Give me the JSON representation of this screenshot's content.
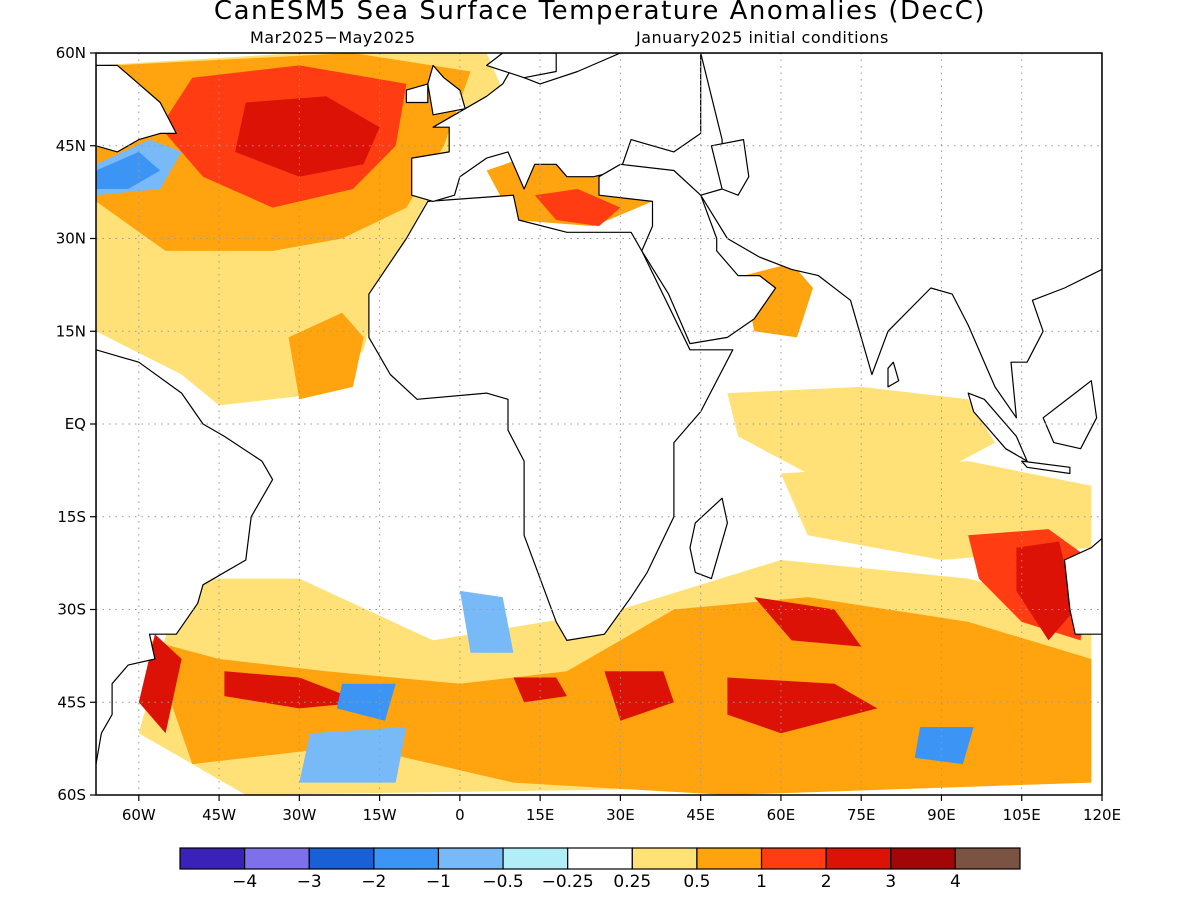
{
  "header": {
    "title": "CanESM5 Sea Surface Temperature Anomalies (DecC)",
    "subtitle_left": "Mar2025−May2025",
    "subtitle_right": "January2025 initial conditions"
  },
  "map": {
    "projection": "equirectangular",
    "lon_range": [
      -68,
      120
    ],
    "lat_range": [
      -60,
      60
    ],
    "grid": "dotted",
    "lat_ticks": [
      {
        "value": 60,
        "label": "60N"
      },
      {
        "value": 45,
        "label": "45N"
      },
      {
        "value": 30,
        "label": "30N"
      },
      {
        "value": 15,
        "label": "15N"
      },
      {
        "value": 0,
        "label": "EQ"
      },
      {
        "value": -15,
        "label": "15S"
      },
      {
        "value": -30,
        "label": "30S"
      },
      {
        "value": -45,
        "label": "45S"
      },
      {
        "value": -60,
        "label": "60S"
      }
    ],
    "lon_ticks": [
      {
        "value": -60,
        "label": "60W"
      },
      {
        "value": -45,
        "label": "45W"
      },
      {
        "value": -30,
        "label": "30W"
      },
      {
        "value": -15,
        "label": "15W"
      },
      {
        "value": 0,
        "label": "0"
      },
      {
        "value": 15,
        "label": "15E"
      },
      {
        "value": 30,
        "label": "30E"
      },
      {
        "value": 45,
        "label": "45E"
      },
      {
        "value": 60,
        "label": "60E"
      },
      {
        "value": 75,
        "label": "75E"
      },
      {
        "value": 90,
        "label": "90E"
      },
      {
        "value": 105,
        "label": "105E"
      },
      {
        "value": 120,
        "label": "120E"
      }
    ],
    "anomaly_regions": [
      {
        "level": "0.25",
        "pts": [
          [
            -68,
            58
          ],
          [
            -30,
            60
          ],
          [
            5,
            60
          ],
          [
            10,
            50
          ],
          [
            -5,
            38
          ],
          [
            -15,
            22
          ],
          [
            -18,
            12
          ],
          [
            -25,
            5
          ],
          [
            -45,
            3
          ],
          [
            -52,
            8
          ],
          [
            -68,
            15
          ]
        ]
      },
      {
        "level": "0.5",
        "pts": [
          [
            -65,
            58
          ],
          [
            -20,
            60
          ],
          [
            2,
            57
          ],
          [
            -3,
            45
          ],
          [
            -10,
            35
          ],
          [
            -22,
            30
          ],
          [
            -35,
            28
          ],
          [
            -55,
            28
          ],
          [
            -68,
            36
          ],
          [
            -68,
            50
          ]
        ]
      },
      {
        "level": "1",
        "pts": [
          [
            -50,
            56
          ],
          [
            -30,
            58
          ],
          [
            -10,
            55
          ],
          [
            -12,
            45
          ],
          [
            -20,
            38
          ],
          [
            -35,
            35
          ],
          [
            -48,
            40
          ],
          [
            -56,
            48
          ]
        ]
      },
      {
        "level": "2",
        "pts": [
          [
            -40,
            52
          ],
          [
            -25,
            53
          ],
          [
            -15,
            48
          ],
          [
            -18,
            42
          ],
          [
            -30,
            40
          ],
          [
            -42,
            44
          ]
        ]
      },
      {
        "level": "-0.5",
        "pts": [
          [
            -68,
            42
          ],
          [
            -58,
            46
          ],
          [
            -52,
            44
          ],
          [
            -56,
            38
          ],
          [
            -68,
            37
          ]
        ]
      },
      {
        "level": "-1",
        "pts": [
          [
            -68,
            41
          ],
          [
            -60,
            44
          ],
          [
            -56,
            41
          ],
          [
            -62,
            38
          ],
          [
            -68,
            38
          ]
        ]
      },
      {
        "level": "0.5",
        "pts": [
          [
            -32,
            14
          ],
          [
            -22,
            18
          ],
          [
            -18,
            14
          ],
          [
            -20,
            6
          ],
          [
            -30,
            4
          ]
        ]
      },
      {
        "level": "0.5",
        "pts": [
          [
            5,
            41
          ],
          [
            15,
            44
          ],
          [
            30,
            41
          ],
          [
            36,
            36
          ],
          [
            25,
            32
          ],
          [
            10,
            33
          ]
        ]
      },
      {
        "level": "1",
        "pts": [
          [
            14,
            37
          ],
          [
            22,
            38
          ],
          [
            30,
            35
          ],
          [
            26,
            32
          ],
          [
            18,
            33
          ]
        ]
      },
      {
        "level": "0.5",
        "pts": [
          [
            53,
            24
          ],
          [
            62,
            26
          ],
          [
            66,
            22
          ],
          [
            63,
            14
          ],
          [
            55,
            15
          ]
        ]
      },
      {
        "level": "0.25",
        "pts": [
          [
            50,
            5
          ],
          [
            75,
            6
          ],
          [
            95,
            4
          ],
          [
            100,
            -3
          ],
          [
            85,
            -10
          ],
          [
            65,
            -8
          ],
          [
            52,
            -2
          ]
        ]
      },
      {
        "level": "0.25",
        "pts": [
          [
            60,
            -8
          ],
          [
            95,
            -6
          ],
          [
            118,
            -10
          ],
          [
            118,
            -20
          ],
          [
            90,
            -22
          ],
          [
            65,
            -18
          ]
        ]
      },
      {
        "level": "0.25",
        "pts": [
          [
            -52,
            -25
          ],
          [
            -30,
            -25
          ],
          [
            -5,
            -35
          ],
          [
            30,
            -30
          ],
          [
            60,
            -22
          ],
          [
            95,
            -25
          ],
          [
            118,
            -30
          ],
          [
            118,
            -58
          ],
          [
            -40,
            -60
          ],
          [
            -60,
            -50
          ]
        ]
      },
      {
        "level": "0.5",
        "pts": [
          [
            -58,
            -35
          ],
          [
            -45,
            -38
          ],
          [
            -25,
            -40
          ],
          [
            0,
            -42
          ],
          [
            20,
            -40
          ],
          [
            40,
            -30
          ],
          [
            65,
            -28
          ],
          [
            95,
            -32
          ],
          [
            118,
            -38
          ],
          [
            118,
            -58
          ],
          [
            50,
            -60
          ],
          [
            10,
            -58
          ],
          [
            -20,
            -52
          ],
          [
            -50,
            -55
          ]
        ]
      },
      {
        "level": "1",
        "pts": [
          [
            95,
            -18
          ],
          [
            110,
            -17
          ],
          [
            118,
            -22
          ],
          [
            116,
            -35
          ],
          [
            105,
            -32
          ],
          [
            97,
            -25
          ]
        ]
      },
      {
        "level": "2",
        "pts": [
          [
            104,
            -20
          ],
          [
            112,
            -19
          ],
          [
            115,
            -30
          ],
          [
            110,
            -35
          ],
          [
            104,
            -27
          ]
        ]
      },
      {
        "level": "2",
        "pts": [
          [
            -57,
            -34
          ],
          [
            -52,
            -38
          ],
          [
            -55,
            -50
          ],
          [
            -60,
            -45
          ]
        ]
      },
      {
        "level": "2",
        "pts": [
          [
            -44,
            -40
          ],
          [
            -30,
            -41
          ],
          [
            -18,
            -45
          ],
          [
            -30,
            -46
          ],
          [
            -44,
            -44
          ]
        ]
      },
      {
        "level": "2",
        "pts": [
          [
            10,
            -41
          ],
          [
            18,
            -41
          ],
          [
            20,
            -44
          ],
          [
            12,
            -45
          ]
        ]
      },
      {
        "level": "2",
        "pts": [
          [
            27,
            -40
          ],
          [
            38,
            -40
          ],
          [
            40,
            -45
          ],
          [
            30,
            -48
          ]
        ]
      },
      {
        "level": "2",
        "pts": [
          [
            50,
            -41
          ],
          [
            70,
            -42
          ],
          [
            78,
            -46
          ],
          [
            60,
            -50
          ],
          [
            50,
            -47
          ]
        ]
      },
      {
        "level": "2",
        "pts": [
          [
            55,
            -28
          ],
          [
            70,
            -30
          ],
          [
            75,
            -36
          ],
          [
            62,
            -35
          ]
        ]
      },
      {
        "level": "-0.5",
        "pts": [
          [
            -28,
            -50
          ],
          [
            -10,
            -49
          ],
          [
            -12,
            -58
          ],
          [
            -30,
            -58
          ]
        ]
      },
      {
        "level": "-0.5",
        "pts": [
          [
            0,
            -27
          ],
          [
            8,
            -28
          ],
          [
            10,
            -37
          ],
          [
            2,
            -37
          ]
        ]
      },
      {
        "level": "-1",
        "pts": [
          [
            86,
            -49
          ],
          [
            96,
            -49
          ],
          [
            94,
            -55
          ],
          [
            85,
            -54
          ]
        ]
      },
      {
        "level": "-1",
        "pts": [
          [
            -22,
            -42
          ],
          [
            -12,
            -42
          ],
          [
            -14,
            -48
          ],
          [
            -23,
            -46
          ]
        ]
      }
    ]
  },
  "chart_data": {
    "type": "heatmap",
    "title": "CanESM5 Sea Surface Temperature Anomalies (DecC)",
    "subtitle": "Mar2025−May2025 / January2025 initial conditions",
    "x_range": [
      "68W",
      "120E"
    ],
    "y_range": [
      "60S",
      "60N"
    ],
    "grid": true,
    "colorbar": {
      "colors": [
        "#3a21b7",
        "#7d70ea",
        "#1860d3",
        "#3c95f5",
        "#78b9f8",
        "#b2eef7",
        "#ffffff",
        "#ffe177",
        "#ffa30e",
        "#ff3c12",
        "#dd1207",
        "#a30607",
        "#7b5343"
      ],
      "tick_labels": [
        "−4",
        "−3",
        "−2",
        "−1",
        "−0.5",
        "−0.25",
        "0.25",
        "0.5",
        "1",
        "2",
        "3",
        "4"
      ]
    }
  },
  "colors": {
    "land": "#ffffff",
    "coast": "#000000",
    "grid": "#999999"
  }
}
